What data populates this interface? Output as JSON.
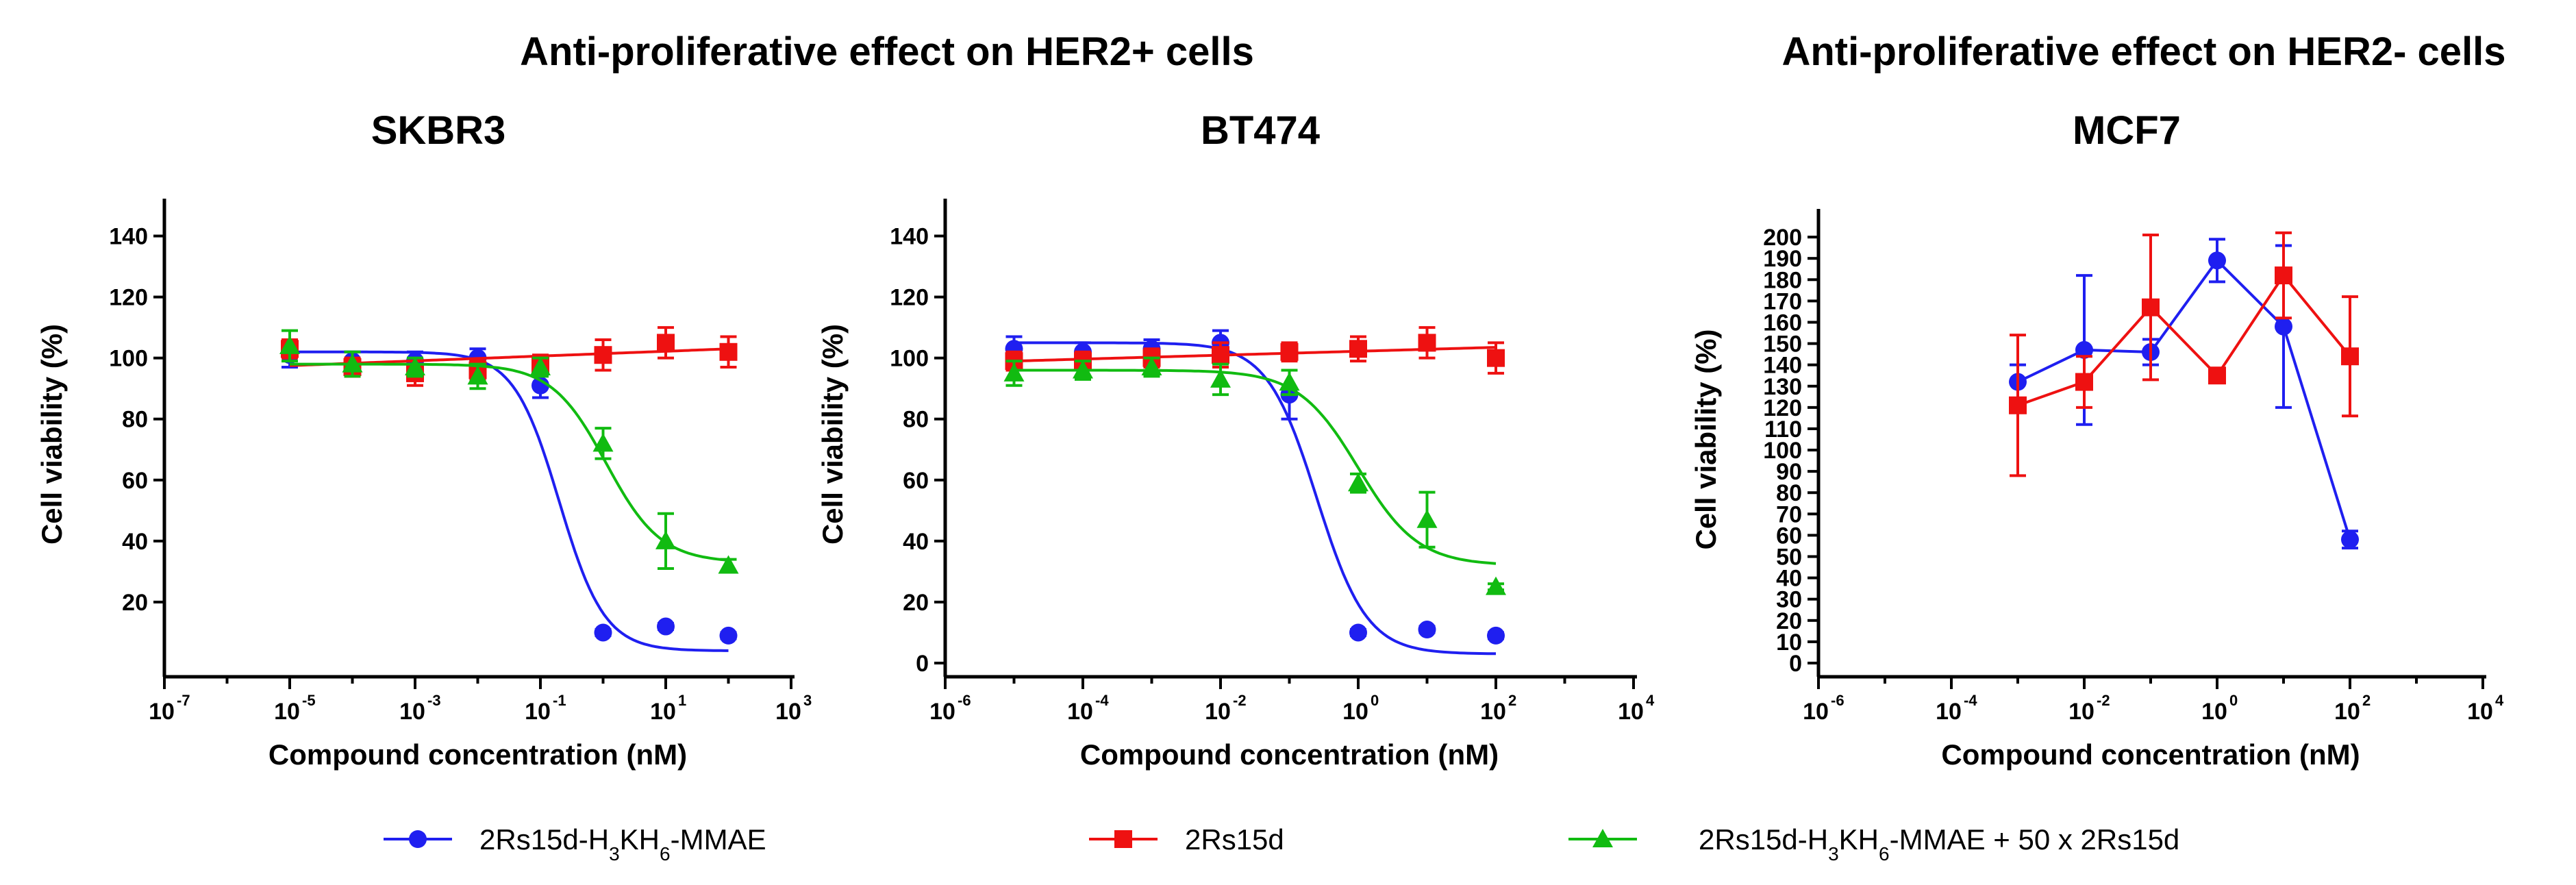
{
  "colors": {
    "blue": "#1f1ff0",
    "red": "#ee1111",
    "green": "#11bb11",
    "axis": "#000000"
  },
  "headers": {
    "her2_pos": "Anti-proliferative effect on HER2+ cells",
    "her2_neg": "Anti-proliferative effect on HER2- cells"
  },
  "legend": [
    {
      "base": "2Rs15d-H",
      "sub1": "3",
      "mid": "KH",
      "sub2": "6",
      "tail": "-MMAE",
      "color": "#1f1ff0",
      "marker": "circle"
    },
    {
      "base": "2Rs15d",
      "sub1": "",
      "mid": "",
      "sub2": "",
      "tail": "",
      "color": "#ee1111",
      "marker": "square"
    },
    {
      "base": "2Rs15d-H",
      "sub1": "3",
      "mid": "KH",
      "sub2": "6",
      "tail": "-MMAE + 50 x 2Rs15d",
      "color": "#11bb11",
      "marker": "triangle"
    }
  ],
  "chart_data": [
    {
      "type": "scatter",
      "title": "SKBR3",
      "xlabel": "Compound concentration (nM)",
      "ylabel": "Cell viability (%)",
      "xscale": "log",
      "xlim_exp": [
        -7,
        3
      ],
      "xtick_exps": [
        -7,
        -5,
        -3,
        -1,
        1,
        3
      ],
      "ylim": [
        0,
        150
      ],
      "yticks": [
        20,
        40,
        60,
        80,
        100,
        120,
        140
      ],
      "fit": "sigmoid",
      "series": [
        {
          "name": "2Rs15d-H3KH6-MMAE",
          "color": "#1f1ff0",
          "marker": "circle",
          "x_exp": [
            -5,
            -4,
            -3,
            -2,
            -1,
            0,
            1,
            2
          ],
          "y": [
            101,
            99,
            99,
            100,
            91,
            10,
            12,
            9
          ],
          "err": [
            4,
            3,
            3,
            3,
            4,
            1,
            1,
            1
          ],
          "curve": {
            "top": 102,
            "bottom": 4,
            "logec50": -0.7,
            "hill": 1.2
          }
        },
        {
          "name": "2Rs15d",
          "color": "#ee1111",
          "marker": "square",
          "x_exp": [
            -5,
            -4,
            -3,
            -2,
            -1,
            0,
            1,
            2
          ],
          "y": [
            103,
            97,
            95,
            96,
            98,
            101,
            105,
            102
          ],
          "err": [
            3,
            3,
            4,
            3,
            3,
            5,
            5,
            5
          ],
          "curve": {
            "flat": true,
            "y_start": 97.5,
            "y_end": 103
          }
        },
        {
          "name": "2Rs15d-H3KH6-MMAE + 50 x 2Rs15d",
          "color": "#11bb11",
          "marker": "triangle",
          "x_exp": [
            -5,
            -4,
            -3,
            -2,
            -1,
            0,
            1,
            2
          ],
          "y": [
            104,
            98,
            97,
            94,
            97,
            72,
            40,
            32
          ],
          "err": [
            5,
            4,
            3,
            4,
            3,
            5,
            9,
            2
          ],
          "curve": {
            "top": 98,
            "bottom": 33,
            "logec50": 0.05,
            "hill": 1.0
          }
        }
      ]
    },
    {
      "type": "scatter",
      "title": "BT474",
      "xlabel": "Compound concentration (nM)",
      "ylabel": "Cell viability (%)",
      "xscale": "log",
      "xlim_exp": [
        -6,
        4
      ],
      "xtick_exps": [
        -6,
        -4,
        -2,
        0,
        2,
        4
      ],
      "ylim": [
        0,
        150
      ],
      "yticks": [
        0,
        20,
        40,
        60,
        80,
        100,
        120,
        140
      ],
      "fit": "sigmoid",
      "series": [
        {
          "name": "2Rs15d-H3KH6-MMAE",
          "color": "#1f1ff0",
          "marker": "circle",
          "x_exp": [
            -5,
            -4,
            -3,
            -2,
            -1,
            0,
            1,
            2
          ],
          "y": [
            103,
            102,
            103,
            105,
            88,
            10,
            11,
            9
          ],
          "err": [
            4,
            3,
            3,
            4,
            8,
            1,
            1,
            1
          ],
          "curve": {
            "top": 105,
            "bottom": 3,
            "logec50": -0.6,
            "hill": 1.2
          }
        },
        {
          "name": "2Rs15d",
          "color": "#ee1111",
          "marker": "square",
          "x_exp": [
            -5,
            -4,
            -3,
            -2,
            -1,
            0,
            1,
            2
          ],
          "y": [
            99,
            99,
            100,
            101,
            102,
            103,
            105,
            100
          ],
          "err": [
            3,
            3,
            3,
            4,
            3,
            4,
            5,
            5
          ],
          "curve": {
            "flat": true,
            "y_start": 99,
            "y_end": 103.5
          }
        },
        {
          "name": "2Rs15d-H3KH6-MMAE + 50 x 2Rs15d",
          "color": "#11bb11",
          "marker": "triangle",
          "x_exp": [
            -5,
            -4,
            -3,
            -2,
            -1,
            0,
            1,
            2
          ],
          "y": [
            95,
            96,
            97,
            93,
            92,
            59,
            47,
            25
          ],
          "err": [
            4,
            3,
            3,
            5,
            4,
            3,
            9,
            1
          ],
          "curve": {
            "top": 96,
            "bottom": 32,
            "logec50": 0.0,
            "hill": 1.0
          }
        }
      ]
    },
    {
      "type": "line",
      "title": "MCF7",
      "xlabel": "Compound concentration (nM)",
      "ylabel": "Cell viability (%)",
      "xscale": "log",
      "xlim_exp": [
        -6,
        4
      ],
      "xtick_exps": [
        -6,
        -4,
        -2,
        0,
        2,
        4
      ],
      "ylim": [
        0,
        210
      ],
      "yticks": [
        0,
        10,
        20,
        30,
        40,
        50,
        60,
        70,
        80,
        90,
        100,
        110,
        120,
        130,
        140,
        150,
        160,
        170,
        180,
        190,
        200
      ],
      "fit": "connect",
      "series": [
        {
          "name": "2Rs15d-H3KH6-MMAE",
          "color": "#1f1ff0",
          "marker": "circle",
          "x_exp": [
            -3,
            -2,
            -1,
            0,
            1,
            2
          ],
          "y": [
            132,
            147,
            146,
            189,
            158,
            58
          ],
          "err": [
            8,
            35,
            6,
            10,
            38,
            4
          ]
        },
        {
          "name": "2Rs15d",
          "color": "#ee1111",
          "marker": "square",
          "x_exp": [
            -3,
            -2,
            -1,
            0,
            1,
            2
          ],
          "y": [
            121,
            132,
            167,
            135,
            182,
            144
          ],
          "err": [
            33,
            12,
            34,
            2,
            20,
            28
          ]
        }
      ]
    }
  ]
}
